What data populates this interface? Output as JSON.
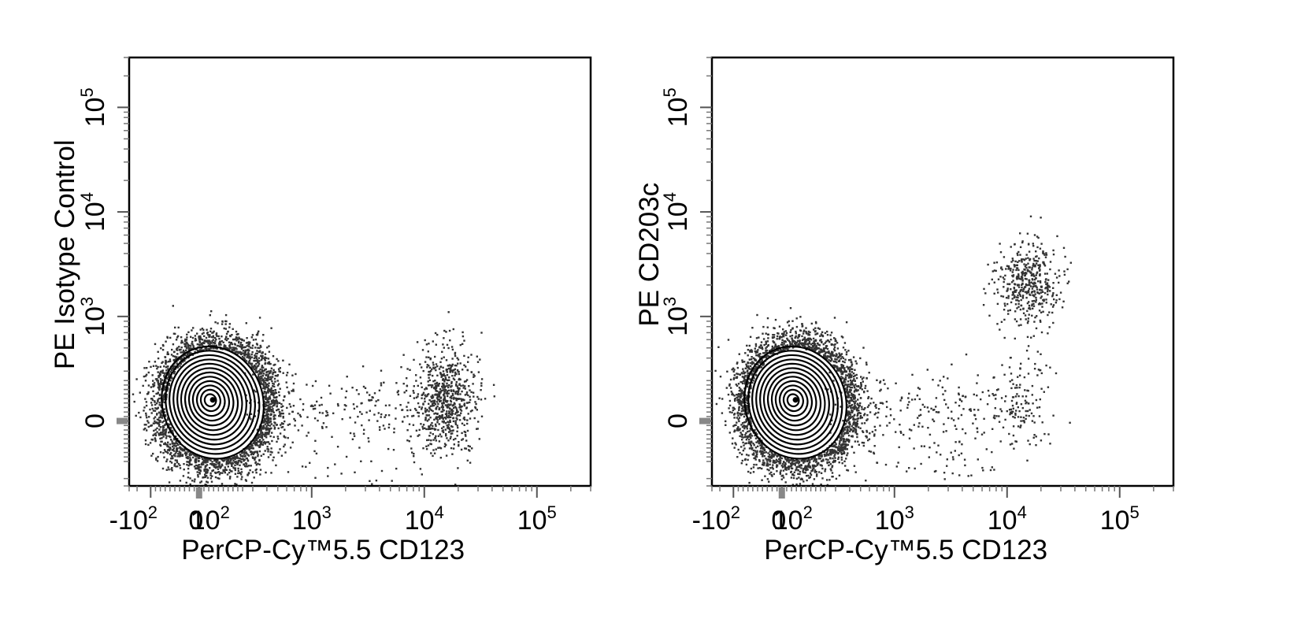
{
  "chart_data": [
    {
      "type": "scatter",
      "subtype": "flow cytometry contour + dot plot",
      "title": "",
      "xlabel": "PerCP-Cy™5.5  CD123",
      "ylabel": "PE Isotype Control",
      "x_scale": "biexponential",
      "y_scale": "biexponential",
      "xlim": [
        -300,
        300000
      ],
      "ylim": [
        -300,
        300000
      ],
      "x_tick_labels": [
        "-10",
        "2",
        "0",
        "10",
        "2",
        "10",
        "3",
        "10",
        "4",
        "10",
        "5"
      ],
      "x_ticks": [
        {
          "value": -100,
          "base": "-10",
          "exp": "2"
        },
        {
          "value": 0,
          "base": "0",
          "exp": ""
        },
        {
          "value": 100,
          "base": "10",
          "exp": "2"
        },
        {
          "value": 1000,
          "base": "10",
          "exp": "3"
        },
        {
          "value": 10000,
          "base": "10",
          "exp": "4"
        },
        {
          "value": 100000,
          "base": "10",
          "exp": "5"
        }
      ],
      "y_ticks": [
        {
          "value": 0,
          "base": "0",
          "exp": ""
        },
        {
          "value": 1000,
          "base": "10",
          "exp": "3"
        },
        {
          "value": 10000,
          "base": "10",
          "exp": "4"
        },
        {
          "value": 100000,
          "base": "10",
          "exp": "5"
        }
      ],
      "populations": [
        {
          "name": "main",
          "render": "contour",
          "x_center": 25,
          "y_center": 40,
          "density": "high"
        },
        {
          "name": "CD123+",
          "render": "dots",
          "x_center": 15000,
          "y_center": 50,
          "count": 700
        }
      ],
      "grid": false,
      "legend": "none"
    },
    {
      "type": "scatter",
      "subtype": "flow cytometry contour + dot plot",
      "title": "",
      "xlabel": "PerCP-Cy™5.5  CD123",
      "ylabel": "PE  CD203c",
      "x_scale": "biexponential",
      "y_scale": "biexponential",
      "xlim": [
        -300,
        300000
      ],
      "ylim": [
        -300,
        300000
      ],
      "x_ticks": [
        {
          "value": -100,
          "base": "-10",
          "exp": "2"
        },
        {
          "value": 0,
          "base": "0",
          "exp": ""
        },
        {
          "value": 100,
          "base": "10",
          "exp": "2"
        },
        {
          "value": 1000,
          "base": "10",
          "exp": "3"
        },
        {
          "value": 10000,
          "base": "10",
          "exp": "4"
        },
        {
          "value": 100000,
          "base": "10",
          "exp": "5"
        }
      ],
      "y_ticks": [
        {
          "value": 0,
          "base": "0",
          "exp": ""
        },
        {
          "value": 1000,
          "base": "10",
          "exp": "3"
        },
        {
          "value": 10000,
          "base": "10",
          "exp": "4"
        },
        {
          "value": 100000,
          "base": "10",
          "exp": "5"
        }
      ],
      "populations": [
        {
          "name": "main",
          "render": "contour",
          "x_center": 25,
          "y_center": 40,
          "density": "high"
        },
        {
          "name": "CD123+ CD203c+",
          "render": "dots",
          "x_center": 15000,
          "y_center": 2200,
          "count": 450
        },
        {
          "name": "CD123+ CD203c-",
          "render": "dots",
          "x_center": 13000,
          "y_center": 50,
          "count": 150
        }
      ],
      "grid": false,
      "legend": "none"
    }
  ]
}
